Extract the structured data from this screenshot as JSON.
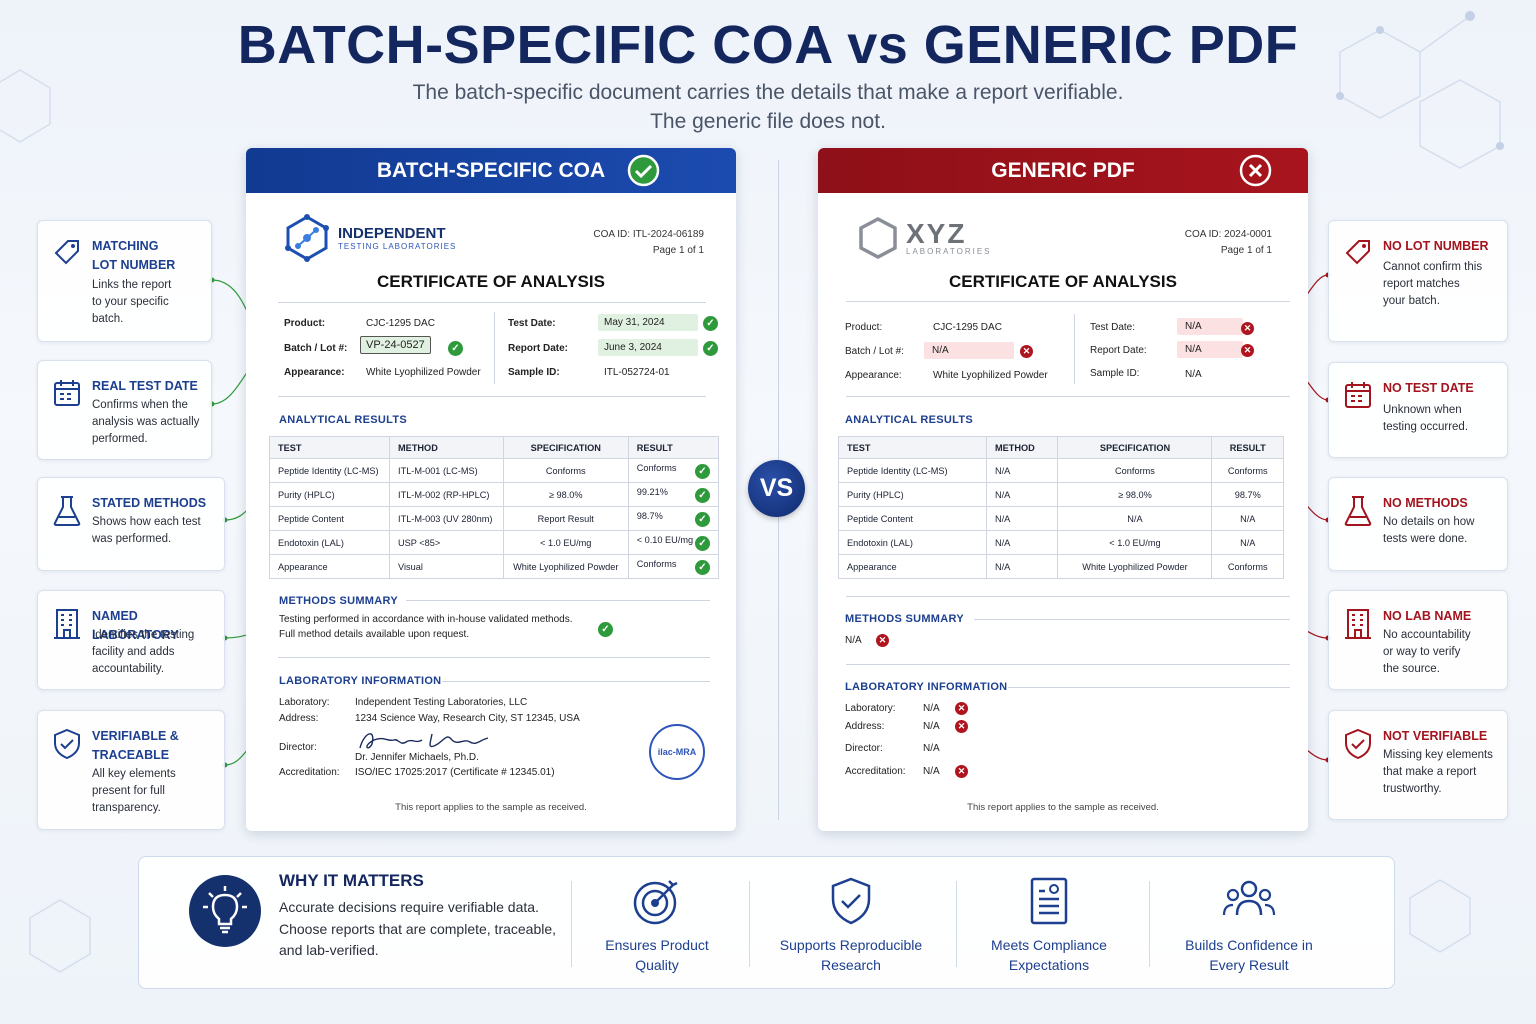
{
  "header": {
    "title": "BATCH-SPECIFIC COA vs GENERIC PDF",
    "subtitle_line1": "The batch-specific document carries the details that make a report verifiable.",
    "subtitle_line2": "The generic file does not."
  },
  "vs_label": "VS",
  "left_card": {
    "header": "BATCH-SPECIFIC COA",
    "lab_name": "INDEPENDENT",
    "lab_sub": "TESTING LABORATORIES",
    "coa_id": "COA ID: ITL-2024-06189",
    "page": "Page 1 of 1",
    "doc_title": "CERTIFICATE OF ANALYSIS",
    "fields": {
      "product_label": "Product:",
      "product": "CJC-1295 DAC",
      "lot_label": "Batch / Lot #:",
      "lot": "VP-24-0527",
      "appearance_label": "Appearance:",
      "appearance": "White Lyophilized Powder",
      "test_date_label": "Test Date:",
      "test_date": "May 31, 2024",
      "report_date_label": "Report Date:",
      "report_date": "June 3, 2024",
      "sample_label": "Sample ID:",
      "sample": "ITL-052724-01"
    },
    "results_title": "ANALYTICAL RESULTS",
    "columns": [
      "TEST",
      "METHOD",
      "SPECIFICATION",
      "RESULT"
    ],
    "rows": [
      {
        "test": "Peptide Identity (LC-MS)",
        "method": "ITL-M-001 (LC-MS)",
        "spec": "Conforms",
        "result": "Conforms"
      },
      {
        "test": "Purity (HPLC)",
        "method": "ITL-M-002 (RP-HPLC)",
        "spec": "≥ 98.0%",
        "result": "99.21%"
      },
      {
        "test": "Peptide Content",
        "method": "ITL-M-003 (UV 280nm)",
        "spec": "Report Result",
        "result": "98.7%"
      },
      {
        "test": "Endotoxin (LAL)",
        "method": "USP <85>",
        "spec": "< 1.0 EU/mg",
        "result": "< 0.10 EU/mg"
      },
      {
        "test": "Appearance",
        "method": "Visual",
        "spec": "White Lyophilized Powder",
        "result": "Conforms"
      }
    ],
    "methods_title": "METHODS SUMMARY",
    "methods_line1": "Testing performed in accordance with in-house validated methods.",
    "methods_line2": "Full method details available upon request.",
    "lab_title": "LABORATORY INFORMATION",
    "lab": {
      "laboratory_label": "Laboratory:",
      "laboratory": "Independent Testing Laboratories, LLC",
      "address_label": "Address:",
      "address": "1234 Science Way, Research City, ST 12345, USA",
      "director_label": "Director:",
      "director": "Dr. Jennifer Michaels, Ph.D.",
      "accreditation_label": "Accreditation:",
      "accreditation": "ISO/IEC 17025:2017 (Certificate # 12345.01)"
    },
    "seal_text": "ilac-MRA",
    "footer": "This report applies to the sample as received."
  },
  "right_card": {
    "header": "GENERIC PDF",
    "lab_name": "XYZ",
    "lab_sub": "LABORATORIES",
    "coa_id": "COA ID: 2024-0001",
    "page": "Page 1 of 1",
    "doc_title": "CERTIFICATE OF ANALYSIS",
    "fields": {
      "product_label": "Product:",
      "product": "CJC-1295 DAC",
      "lot_label": "Batch / Lot #:",
      "lot": "N/A",
      "appearance_label": "Appearance:",
      "appearance": "White Lyophilized Powder",
      "test_date_label": "Test Date:",
      "test_date": "N/A",
      "report_date_label": "Report Date:",
      "report_date": "N/A",
      "sample_label": "Sample ID:",
      "sample": "N/A"
    },
    "results_title": "ANALYTICAL RESULTS",
    "columns": [
      "TEST",
      "METHOD",
      "SPECIFICATION",
      "RESULT"
    ],
    "rows": [
      {
        "test": "Peptide Identity (LC-MS)",
        "method": "N/A",
        "spec": "Conforms",
        "result": "Conforms"
      },
      {
        "test": "Purity (HPLC)",
        "method": "N/A",
        "spec": "≥ 98.0%",
        "result": "98.7%"
      },
      {
        "test": "Peptide Content",
        "method": "N/A",
        "spec": "N/A",
        "result": "N/A"
      },
      {
        "test": "Endotoxin (LAL)",
        "method": "N/A",
        "spec": "< 1.0 EU/mg",
        "result": "N/A"
      },
      {
        "test": "Appearance",
        "method": "N/A",
        "spec": "White Lyophilized Powder",
        "result": "Conforms"
      }
    ],
    "methods_title": "METHODS SUMMARY",
    "methods_value": "N/A",
    "lab_title": "LABORATORY INFORMATION",
    "lab": {
      "laboratory_label": "Laboratory:",
      "laboratory": "N/A",
      "address_label": "Address:",
      "address": "N/A",
      "director_label": "Director:",
      "director": "N/A",
      "accreditation_label": "Accreditation:",
      "accreditation": "N/A"
    },
    "footer": "This report applies to the sample as received."
  },
  "left_callouts": [
    {
      "title1": "MATCHING",
      "title2": "LOT NUMBER",
      "desc": [
        "Links the report",
        "to your specific",
        "batch."
      ],
      "icon": "tag-icon"
    },
    {
      "title1": "REAL TEST DATE",
      "title2": "",
      "desc": [
        "Confirms when the",
        "analysis was actually",
        "performed."
      ],
      "icon": "calendar-icon"
    },
    {
      "title1": "STATED METHODS",
      "title2": "",
      "desc": [
        "Shows how each test",
        "was performed."
      ],
      "icon": "flask-icon"
    },
    {
      "title1": "NAMED LABORATORY",
      "title2": "",
      "desc": [
        "Identifies the testing",
        "facility and adds",
        "accountability."
      ],
      "icon": "building-icon"
    },
    {
      "title1": "VERIFIABLE &",
      "title2": "TRACEABLE",
      "desc": [
        "All key elements",
        "present for full",
        "transparency."
      ],
      "icon": "shield-check-icon"
    }
  ],
  "right_callouts": [
    {
      "title1": "NO LOT NUMBER",
      "desc": [
        "Cannot confirm this",
        "report matches",
        "your batch."
      ],
      "icon": "tag-icon"
    },
    {
      "title1": "NO TEST DATE",
      "desc": [
        "Unknown when",
        "testing occurred."
      ],
      "icon": "calendar-icon"
    },
    {
      "title1": "NO METHODS",
      "desc": [
        "No details on how",
        "tests were done."
      ],
      "icon": "flask-icon"
    },
    {
      "title1": "NO LAB NAME",
      "desc": [
        "No accountability",
        "or way to verify",
        "the source."
      ],
      "icon": "building-icon"
    },
    {
      "title1": "NOT VERIFIABLE",
      "desc": [
        "Missing key elements",
        "that make a report",
        "trustworthy."
      ],
      "icon": "shield-check-icon"
    }
  ],
  "why": {
    "title": "WHY IT MATTERS",
    "desc": "Accurate decisions require verifiable data. Choose reports that are complete, traceable, and lab-verified.",
    "benefits": [
      {
        "line1": "Ensures Product",
        "line2": "Quality",
        "icon": "target-icon"
      },
      {
        "line1": "Supports Reproducible",
        "line2": "Research",
        "icon": "shield-check-icon"
      },
      {
        "line1": "Meets Compliance",
        "line2": "Expectations",
        "icon": "document-icon"
      },
      {
        "line1": "Builds Confidence in",
        "line2": "Every Result",
        "icon": "people-icon"
      }
    ]
  },
  "colors": {
    "navy": "#13265e",
    "blue": "#1d3f8f",
    "red": "#a3141e",
    "green": "#2f9a3c"
  }
}
